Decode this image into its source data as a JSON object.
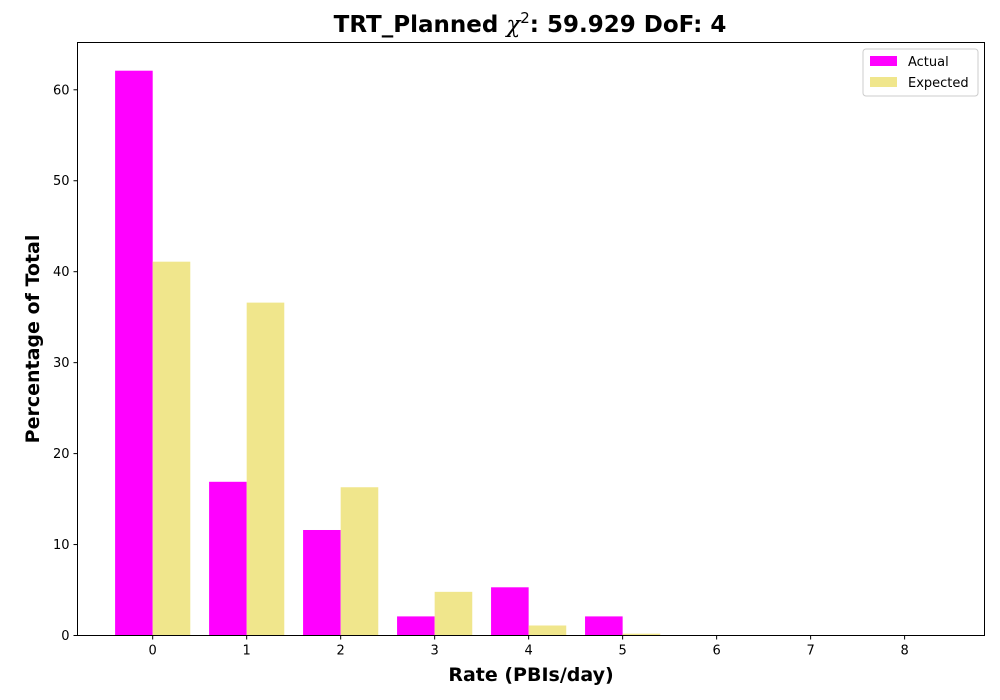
{
  "chart_data": {
    "type": "bar",
    "title_main": "TRT_Planned ",
    "title_chi": "χ",
    "title_sup": "2",
    "title_rest": ": 59.929 DoF: 4",
    "xlabel": "Rate (PBIs/day)",
    "ylabel": "Percentage of Total",
    "categories": [
      "0",
      "1",
      "2",
      "3",
      "4",
      "5",
      "6",
      "7",
      "8"
    ],
    "x": [
      0,
      1,
      2,
      3,
      4,
      5,
      6,
      7,
      8
    ],
    "series": [
      {
        "name": "Actual",
        "color": "#ff00ff",
        "values": [
          62.1,
          16.9,
          11.6,
          2.1,
          5.3,
          2.1,
          0,
          0,
          0
        ]
      },
      {
        "name": "Expected",
        "color": "#f0e68c",
        "values": [
          41.1,
          36.6,
          16.3,
          4.8,
          1.1,
          0.2,
          0.05,
          0,
          0
        ]
      }
    ],
    "xlim": [
      -0.8,
      8.85
    ],
    "ylim": [
      0,
      65.2
    ],
    "yticks": [
      0,
      10,
      20,
      30,
      40,
      50,
      60
    ],
    "legend_position": "top-right",
    "grid": false
  }
}
